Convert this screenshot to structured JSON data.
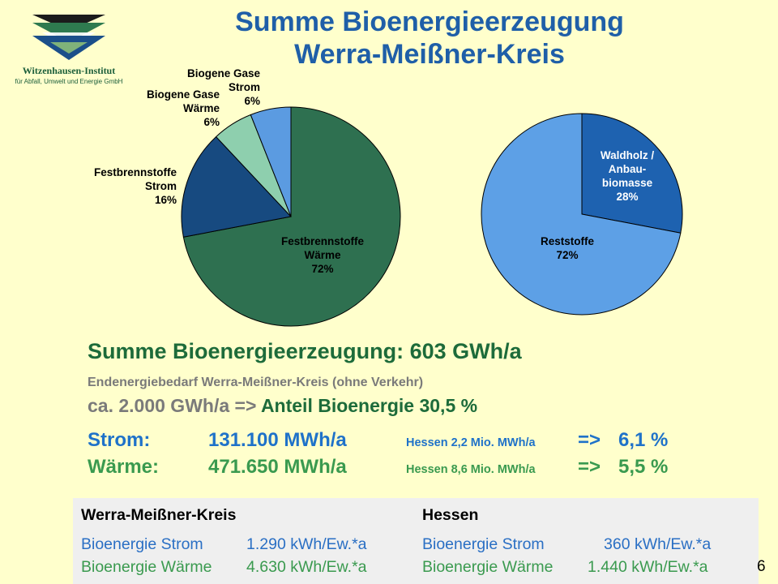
{
  "institute": {
    "name": "Witzenhausen-Institut",
    "subtitle": "für Abfall, Umwelt und Energie GmbH"
  },
  "title": {
    "line1": "Summe Bioenergieerzeugung",
    "line2": "Werra-Meißner-Kreis"
  },
  "chart_data": [
    {
      "type": "pie",
      "slices": [
        {
          "label_lines": [
            "Festbrennstoffe",
            "Wärme",
            "72%"
          ],
          "value": 72,
          "color": "#2E7050"
        },
        {
          "label_lines": [
            "Festbrennstoffe",
            "Strom",
            "16%"
          ],
          "value": 16,
          "color": "#174A80"
        },
        {
          "label_lines": [
            "Biogene Gase",
            "Wärme",
            "6%"
          ],
          "value": 6,
          "color": "#8ECFAE"
        },
        {
          "label_lines": [
            "Biogene Gase",
            "Strom",
            "6%"
          ],
          "value": 6,
          "color": "#5B9BE1"
        }
      ],
      "start_angle_deg": 0,
      "direction": "clockwise"
    },
    {
      "type": "pie",
      "slices": [
        {
          "label_lines": [
            "Waldholz /",
            "Anbau-",
            "biomasse",
            "28%"
          ],
          "value": 28,
          "color": "#1E62B0",
          "label_color": "#FFFFFF"
        },
        {
          "label_lines": [
            "Reststoffe",
            "72%"
          ],
          "value": 72,
          "color": "#5DA0E6",
          "label_color": "#000000"
        }
      ],
      "start_angle_deg": 0,
      "direction": "clockwise"
    }
  ],
  "summary": {
    "total": "Summe Bioenergieerzeugung: 603 GWh/a",
    "demand_label": "Endenergiebedarf Werra-Meißner-Kreis  (ohne Verkehr)",
    "demand_value": "ca. 2.000 GWh/a => ",
    "share": "Anteil Bioenergie  30,5 %"
  },
  "rows": {
    "strom": {
      "label": "Strom:",
      "value": "131.100 MWh/a",
      "hessen": "Hessen 2,2 Mio. MWh/a",
      "arrow": "=>",
      "percent": "6,1 %"
    },
    "waerme": {
      "label": "Wärme:",
      "value": "471.650 MWh/a",
      "hessen": "Hessen 8,6 Mio. MWh/a",
      "arrow": "=>",
      "percent": "5,5 %"
    }
  },
  "comparison": {
    "left": {
      "header": "Werra-Meißner-Kreis",
      "strom_label": "Bioenergie Strom",
      "strom_value": "1.290 kWh/Ew.*a",
      "waerme_label": "Bioenergie Wärme",
      "waerme_value": "4.630 kWh/Ew.*a"
    },
    "right": {
      "header": "Hessen",
      "strom_label": "Bioenergie Strom",
      "strom_value": "360 kWh/Ew.*a",
      "waerme_label": "Bioenergie Wärme",
      "waerme_value": "1.440 kWh/Ew.*a"
    }
  },
  "page_number": "6"
}
